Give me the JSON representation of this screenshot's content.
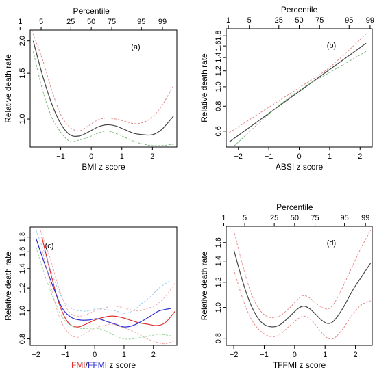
{
  "chart_data": [
    {
      "id": "a",
      "type": "line",
      "panel_label": "(a)",
      "xlabel": "BMI z score",
      "ylabel": "Relative death rate",
      "top_axis_title": "Percentile",
      "top_ticks": [
        {
          "label": "1",
          "z": -2.33
        },
        {
          "label": "5",
          "z": -1.64
        },
        {
          "label": "25",
          "z": -0.67
        },
        {
          "label": "50",
          "z": 0
        },
        {
          "label": "75",
          "z": 0.67
        },
        {
          "label": "95",
          "z": 1.64
        },
        {
          "label": "99",
          "z": 2.33
        }
      ],
      "xlim": [
        -2.0,
        2.8
      ],
      "ylim": [
        0.78,
        2.2
      ],
      "y_log": true,
      "x_ticks": [
        -1,
        0,
        1,
        2
      ],
      "x_tick_labels": [
        "−1",
        "0",
        "1",
        "2"
      ],
      "y_ticks": [
        1.0,
        1.5,
        2.0
      ],
      "y_tick_labels": [
        "1.0",
        "1.5",
        "2.0"
      ],
      "series": [
        {
          "role": "estimate",
          "color": "#444444",
          "dashed": false,
          "x": [
            -1.9,
            -1.6,
            -1.3,
            -1.0,
            -0.7,
            -0.4,
            -0.1,
            0.2,
            0.5,
            0.8,
            1.1,
            1.4,
            1.7,
            2.0,
            2.3,
            2.7
          ],
          "y": [
            2.0,
            1.48,
            1.15,
            0.96,
            0.87,
            0.86,
            0.89,
            0.93,
            0.95,
            0.94,
            0.91,
            0.88,
            0.87,
            0.87,
            0.91,
            1.03
          ]
        },
        {
          "role": "upper",
          "color": "#e08080",
          "dashed": true,
          "x": [
            -1.95,
            -1.6,
            -1.3,
            -1.0,
            -0.7,
            -0.4,
            -0.1,
            0.2,
            0.5,
            0.8,
            1.1,
            1.4,
            1.7,
            2.0,
            2.3,
            2.7
          ],
          "y": [
            2.2,
            1.7,
            1.3,
            1.04,
            0.93,
            0.9,
            0.94,
            0.99,
            1.01,
            1.0,
            0.98,
            0.96,
            0.97,
            1.02,
            1.12,
            1.35
          ]
        },
        {
          "role": "lower",
          "color": "#70b070",
          "dashed": true,
          "x": [
            -1.9,
            -1.6,
            -1.3,
            -1.0,
            -0.7,
            -0.4,
            -0.1,
            0.2,
            0.5,
            0.8,
            1.1,
            1.4,
            1.7,
            2.0,
            2.3,
            2.7
          ],
          "y": [
            1.82,
            1.3,
            1.02,
            0.89,
            0.82,
            0.83,
            0.85,
            0.88,
            0.9,
            0.88,
            0.85,
            0.82,
            0.8,
            0.79,
            0.79,
            0.8
          ]
        }
      ]
    },
    {
      "id": "b",
      "type": "line",
      "panel_label": "(b)",
      "xlabel": "ABSI z score",
      "ylabel": "Relative death rate",
      "top_axis_title": "Percentile",
      "top_ticks": [
        {
          "label": "1",
          "z": -2.33
        },
        {
          "label": "5",
          "z": -1.64
        },
        {
          "label": "25",
          "z": -0.67
        },
        {
          "label": "50",
          "z": 0
        },
        {
          "label": "75",
          "z": 0.67
        },
        {
          "label": "95",
          "z": 1.64
        },
        {
          "label": "99",
          "z": 2.33
        }
      ],
      "xlim": [
        -2.4,
        2.4
      ],
      "ylim": [
        0.5,
        1.95
      ],
      "y_log": true,
      "x_ticks": [
        -2,
        -1,
        0,
        1,
        2
      ],
      "x_tick_labels": [
        "−2",
        "−1",
        "0",
        "1",
        "2"
      ],
      "y_ticks": [
        0.6,
        0.8,
        1.0,
        1.2,
        1.4,
        1.6,
        1.8
      ],
      "y_tick_labels": [
        "0.6",
        "0.8",
        "1.0",
        "1.2",
        "1.4",
        "1.6",
        "1.8"
      ],
      "series": [
        {
          "role": "estimate",
          "color": "#444444",
          "dashed": false,
          "x": [
            -2.3,
            2.2
          ],
          "y": [
            0.53,
            1.65
          ]
        },
        {
          "role": "upper",
          "color": "#e08080",
          "dashed": true,
          "x": [
            -2.3,
            -1.0,
            0.0,
            1.0,
            2.2
          ],
          "y": [
            0.59,
            0.79,
            0.99,
            1.25,
            1.84
          ]
        },
        {
          "role": "lower",
          "color": "#70b070",
          "dashed": true,
          "x": [
            -2.3,
            -1.0,
            0.0,
            1.0,
            2.2
          ],
          "y": [
            0.48,
            0.73,
            0.96,
            1.18,
            1.5
          ]
        }
      ]
    },
    {
      "id": "c",
      "type": "line",
      "panel_label": "(c)",
      "xlabel_parts": [
        {
          "text": "FMI",
          "color": "#e03030"
        },
        {
          "text": "/",
          "color": "#000000"
        },
        {
          "text": "FFMI",
          "color": "#3030d0"
        },
        {
          "text": " z score",
          "color": "#000000"
        }
      ],
      "ylabel": "Relative death rate",
      "xlim": [
        -2.2,
        2.8
      ],
      "ylim": [
        0.76,
        1.95
      ],
      "y_log": true,
      "x_ticks": [
        -2,
        -1,
        0,
        1,
        2
      ],
      "x_tick_labels": [
        "−2",
        "−1",
        "0",
        "1",
        "2"
      ],
      "y_ticks": [
        0.8,
        1.0,
        1.2,
        1.4,
        1.6,
        1.8
      ],
      "y_tick_labels": [
        "0.8",
        "1.0",
        "1.2",
        "1.4",
        "1.6",
        "1.8"
      ],
      "series": [
        {
          "name": "FMI",
          "role": "estimate",
          "color": "#e03030",
          "dashed": false,
          "x": [
            -1.8,
            -1.5,
            -1.2,
            -0.9,
            -0.6,
            -0.3,
            0.0,
            0.3,
            0.6,
            0.9,
            1.2,
            1.5,
            1.8,
            2.1,
            2.4,
            2.75
          ],
          "y": [
            1.8,
            1.35,
            1.05,
            0.91,
            0.88,
            0.9,
            0.93,
            0.95,
            0.96,
            0.95,
            0.93,
            0.91,
            0.9,
            0.89,
            0.91,
            1.0
          ]
        },
        {
          "name": "FFMI",
          "role": "estimate",
          "color": "#3030d0",
          "dashed": false,
          "x": [
            -2.0,
            -1.7,
            -1.4,
            -1.1,
            -0.8,
            -0.5,
            -0.2,
            0.1,
            0.4,
            0.7,
            1.0,
            1.3,
            1.6,
            1.9,
            2.2,
            2.6
          ],
          "y": [
            1.78,
            1.45,
            1.2,
            1.02,
            0.95,
            0.93,
            0.93,
            0.94,
            0.92,
            0.9,
            0.88,
            0.89,
            0.92,
            0.96,
            1.0,
            1.02
          ]
        },
        {
          "name": "FMI",
          "role": "upper",
          "color": "#f0a0a0",
          "dashed": true,
          "x": [
            -1.85,
            -1.5,
            -1.2,
            -0.9,
            -0.6,
            -0.3,
            0.0,
            0.3,
            0.6,
            0.9,
            1.2,
            1.5,
            1.8,
            2.1,
            2.4,
            2.75
          ],
          "y": [
            1.9,
            1.5,
            1.18,
            1.0,
            0.96,
            0.97,
            1.0,
            1.02,
            1.04,
            1.03,
            1.01,
            1.0,
            1.02,
            1.05,
            1.12,
            1.25
          ]
        },
        {
          "name": "FMI",
          "role": "lower",
          "color": "#f0a0a0",
          "dashed": true,
          "x": [
            -1.8,
            -1.5,
            -1.2,
            -0.9,
            -0.6,
            -0.3,
            0.0,
            0.3,
            0.6,
            0.9,
            1.2,
            1.5,
            1.8,
            2.1,
            2.4,
            2.75
          ],
          "y": [
            1.65,
            1.22,
            0.95,
            0.84,
            0.81,
            0.84,
            0.87,
            0.89,
            0.9,
            0.88,
            0.86,
            0.83,
            0.8,
            0.78,
            0.77,
            0.79
          ]
        },
        {
          "name": "FFMI",
          "role": "upper",
          "color": "#90c8f0",
          "dashed": true,
          "x": [
            -2.0,
            -1.7,
            -1.4,
            -1.1,
            -0.8,
            -0.5,
            -0.2,
            0.1,
            0.4,
            0.7,
            1.0,
            1.3,
            1.6,
            1.9,
            2.2,
            2.6
          ],
          "y": [
            1.9,
            1.58,
            1.3,
            1.1,
            1.02,
            1.0,
            1.0,
            1.02,
            1.01,
            1.0,
            0.98,
            1.0,
            1.06,
            1.12,
            1.2,
            1.28
          ]
        },
        {
          "name": "FFMI",
          "role": "lower",
          "color": "#90d090",
          "dashed": true,
          "x": [
            -2.0,
            -1.7,
            -1.4,
            -1.1,
            -0.8,
            -0.5,
            -0.2,
            0.1,
            0.4,
            0.7,
            1.0,
            1.3,
            1.6,
            1.9,
            2.2,
            2.6
          ],
          "y": [
            1.66,
            1.33,
            1.1,
            0.95,
            0.89,
            0.87,
            0.87,
            0.87,
            0.85,
            0.82,
            0.8,
            0.8,
            0.81,
            0.82,
            0.83,
            0.82
          ]
        }
      ]
    },
    {
      "id": "d",
      "type": "line",
      "panel_label": "(d)",
      "xlabel": "TFFMI z score",
      "ylabel": "Relative death rate",
      "top_axis_title": "Percentile",
      "top_ticks": [
        {
          "label": "1",
          "z": -2.33
        },
        {
          "label": "5",
          "z": -1.64
        },
        {
          "label": "25",
          "z": -0.67
        },
        {
          "label": "50",
          "z": 0
        },
        {
          "label": "75",
          "z": 0.67
        },
        {
          "label": "95",
          "z": 1.64
        },
        {
          "label": "99",
          "z": 2.33
        }
      ],
      "xlim": [
        -2.25,
        2.55
      ],
      "ylim": [
        0.76,
        1.8
      ],
      "y_log": true,
      "x_ticks": [
        -2,
        -1,
        0,
        1,
        2
      ],
      "x_tick_labels": [
        "−2",
        "−1",
        "0",
        "1",
        "2"
      ],
      "y_ticks": [
        0.8,
        1.0,
        1.2,
        1.4,
        1.6
      ],
      "y_tick_labels": [
        "0.8",
        "1.0",
        "1.2",
        "1.4",
        "1.6"
      ],
      "series": [
        {
          "role": "estimate",
          "color": "#444444",
          "dashed": false,
          "x": [
            -2.0,
            -1.7,
            -1.4,
            -1.1,
            -0.8,
            -0.5,
            -0.2,
            0.1,
            0.3,
            0.5,
            0.7,
            0.9,
            1.1,
            1.3,
            1.6,
            1.9,
            2.2,
            2.5
          ],
          "y": [
            1.52,
            1.2,
            1.0,
            0.9,
            0.87,
            0.88,
            0.93,
            0.99,
            1.01,
            0.99,
            0.95,
            0.91,
            0.89,
            0.91,
            1.0,
            1.13,
            1.25,
            1.38
          ]
        },
        {
          "role": "upper",
          "color": "#e08080",
          "dashed": true,
          "x": [
            -2.0,
            -1.7,
            -1.4,
            -1.1,
            -0.8,
            -0.5,
            -0.2,
            0.1,
            0.3,
            0.5,
            0.7,
            0.9,
            1.1,
            1.3,
            1.6,
            1.9,
            2.2,
            2.5
          ],
          "y": [
            1.75,
            1.35,
            1.09,
            0.97,
            0.93,
            0.94,
            0.99,
            1.06,
            1.09,
            1.07,
            1.03,
            1.0,
            0.99,
            1.03,
            1.17,
            1.35,
            1.55,
            1.75
          ]
        },
        {
          "role": "lower",
          "color": "#e08080",
          "dashed": true,
          "x": [
            -2.0,
            -1.7,
            -1.4,
            -1.1,
            -0.8,
            -0.5,
            -0.2,
            0.1,
            0.3,
            0.5,
            0.7,
            0.9,
            1.1,
            1.3,
            1.6,
            1.9,
            2.2,
            2.5
          ],
          "y": [
            1.32,
            1.06,
            0.91,
            0.84,
            0.81,
            0.82,
            0.87,
            0.92,
            0.94,
            0.92,
            0.88,
            0.83,
            0.8,
            0.8,
            0.86,
            0.95,
            1.02,
            1.05
          ]
        }
      ]
    }
  ]
}
